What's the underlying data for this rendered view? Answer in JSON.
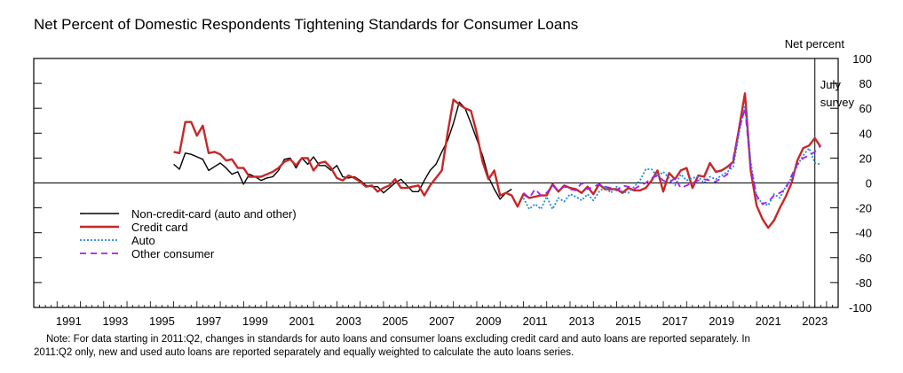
{
  "chart_data": {
    "type": "line",
    "title": "Net Percent of Domestic Respondents Tightening Standards for Consumer Loans",
    "ylabel": "Net percent",
    "ylim": [
      -100,
      100
    ],
    "yticks": [
      100,
      80,
      60,
      40,
      20,
      0,
      -20,
      -40,
      -60,
      -80,
      -100
    ],
    "xlim": [
      1990,
      2024.5
    ],
    "xticks": [
      "1991",
      "1993",
      "1995",
      "1997",
      "1999",
      "2001",
      "2003",
      "2005",
      "2007",
      "2009",
      "2011",
      "2013",
      "2015",
      "2017",
      "2019",
      "2021",
      "2023"
    ],
    "annotation": {
      "lines": [
        "July",
        "survey"
      ],
      "x": 2023.5
    },
    "legend": {
      "placement": "left-center"
    },
    "grid": false,
    "series": [
      {
        "name": "Non-credit-card (auto and other)",
        "color": "#000000",
        "style": "solid",
        "points": [
          [
            1996.0,
            15
          ],
          [
            1996.25,
            11
          ],
          [
            1996.5,
            24
          ],
          [
            1996.75,
            23
          ],
          [
            1997.0,
            21
          ],
          [
            1997.25,
            19
          ],
          [
            1997.5,
            10
          ],
          [
            1997.75,
            13
          ],
          [
            1998.0,
            16
          ],
          [
            1998.25,
            12
          ],
          [
            1998.5,
            7
          ],
          [
            1998.75,
            9
          ],
          [
            1999.0,
            -1
          ],
          [
            1999.25,
            7
          ],
          [
            1999.5,
            5
          ],
          [
            1999.75,
            2
          ],
          [
            2000.0,
            4
          ],
          [
            2000.25,
            5
          ],
          [
            2000.5,
            10
          ],
          [
            2000.75,
            19
          ],
          [
            2001.0,
            20
          ],
          [
            2001.25,
            12
          ],
          [
            2001.5,
            20
          ],
          [
            2001.75,
            15
          ],
          [
            2002.0,
            21
          ],
          [
            2002.25,
            14
          ],
          [
            2002.5,
            14
          ],
          [
            2002.75,
            10
          ],
          [
            2003.0,
            14
          ],
          [
            2003.25,
            5
          ],
          [
            2003.5,
            4
          ],
          [
            2003.75,
            5
          ],
          [
            2004.0,
            2
          ],
          [
            2004.25,
            -2
          ],
          [
            2004.5,
            -3
          ],
          [
            2004.75,
            -3
          ],
          [
            2005.0,
            -8
          ],
          [
            2005.25,
            -4
          ],
          [
            2005.5,
            0
          ],
          [
            2005.75,
            3
          ],
          [
            2006.0,
            -2
          ],
          [
            2006.25,
            -7
          ],
          [
            2006.5,
            -7
          ],
          [
            2006.75,
            2
          ],
          [
            2007.0,
            10
          ],
          [
            2007.25,
            15
          ],
          [
            2007.5,
            25
          ],
          [
            2007.75,
            34
          ],
          [
            2008.0,
            48
          ],
          [
            2008.25,
            65
          ],
          [
            2008.5,
            60
          ],
          [
            2008.75,
            48
          ],
          [
            2009.0,
            35
          ],
          [
            2009.25,
            22
          ],
          [
            2009.5,
            5
          ],
          [
            2009.75,
            -5
          ],
          [
            2010.0,
            -13
          ],
          [
            2010.25,
            -8
          ],
          [
            2010.5,
            -5
          ]
        ]
      },
      {
        "name": "Credit card",
        "color": "#c62828",
        "style": "solid",
        "points": [
          [
            1996.0,
            25
          ],
          [
            1996.25,
            24
          ],
          [
            1996.5,
            49
          ],
          [
            1996.75,
            49
          ],
          [
            1997.0,
            38
          ],
          [
            1997.25,
            46
          ],
          [
            1997.5,
            24
          ],
          [
            1997.75,
            25
          ],
          [
            1998.0,
            23
          ],
          [
            1998.25,
            18
          ],
          [
            1998.5,
            19
          ],
          [
            1998.75,
            12
          ],
          [
            1999.0,
            12
          ],
          [
            1999.25,
            5
          ],
          [
            1999.5,
            5
          ],
          [
            1999.75,
            5
          ],
          [
            2000.0,
            7
          ],
          [
            2000.25,
            9
          ],
          [
            2000.5,
            12
          ],
          [
            2000.75,
            17
          ],
          [
            2001.0,
            19
          ],
          [
            2001.25,
            14
          ],
          [
            2001.5,
            20
          ],
          [
            2001.75,
            20
          ],
          [
            2002.0,
            10
          ],
          [
            2002.25,
            16
          ],
          [
            2002.5,
            17
          ],
          [
            2002.75,
            12
          ],
          [
            2003.0,
            4
          ],
          [
            2003.25,
            2
          ],
          [
            2003.5,
            6
          ],
          [
            2003.75,
            4
          ],
          [
            2004.0,
            1
          ],
          [
            2004.25,
            -3
          ],
          [
            2004.5,
            -2
          ],
          [
            2004.75,
            -7
          ],
          [
            2005.0,
            -4
          ],
          [
            2005.25,
            -2
          ],
          [
            2005.5,
            3
          ],
          [
            2005.75,
            -4
          ],
          [
            2006.0,
            -4
          ],
          [
            2006.25,
            -3
          ],
          [
            2006.5,
            -2
          ],
          [
            2006.75,
            -10
          ],
          [
            2007.0,
            -2
          ],
          [
            2007.25,
            4
          ],
          [
            2007.5,
            10
          ],
          [
            2007.75,
            40
          ],
          [
            2008.0,
            67
          ],
          [
            2008.25,
            63
          ],
          [
            2008.5,
            60
          ],
          [
            2008.75,
            58
          ],
          [
            2009.0,
            40
          ],
          [
            2009.25,
            17
          ],
          [
            2009.5,
            3
          ],
          [
            2009.75,
            10
          ],
          [
            2010.0,
            -10
          ],
          [
            2010.25,
            -8
          ],
          [
            2010.5,
            -10
          ],
          [
            2010.75,
            -19
          ],
          [
            2011.0,
            -9
          ],
          [
            2011.25,
            -12
          ],
          [
            2011.5,
            -11
          ],
          [
            2011.75,
            -10
          ],
          [
            2012.0,
            -10
          ],
          [
            2012.25,
            -1
          ],
          [
            2012.5,
            -7
          ],
          [
            2012.75,
            -2
          ],
          [
            2013.0,
            -4
          ],
          [
            2013.25,
            -5
          ],
          [
            2013.5,
            -8
          ],
          [
            2013.75,
            -3
          ],
          [
            2014.0,
            -9
          ],
          [
            2014.25,
            -1
          ],
          [
            2014.5,
            -5
          ],
          [
            2014.75,
            -5
          ],
          [
            2015.0,
            -5
          ],
          [
            2015.25,
            -8
          ],
          [
            2015.5,
            -4
          ],
          [
            2015.75,
            -6
          ],
          [
            2016.0,
            -6
          ],
          [
            2016.25,
            -4
          ],
          [
            2016.5,
            2
          ],
          [
            2016.75,
            10
          ],
          [
            2017.0,
            -7
          ],
          [
            2017.25,
            8
          ],
          [
            2017.5,
            3
          ],
          [
            2017.75,
            10
          ],
          [
            2018.0,
            12
          ],
          [
            2018.25,
            -4
          ],
          [
            2018.5,
            6
          ],
          [
            2018.75,
            5
          ],
          [
            2019.0,
            16
          ],
          [
            2019.25,
            9
          ],
          [
            2019.5,
            10
          ],
          [
            2019.75,
            13
          ],
          [
            2020.0,
            17
          ],
          [
            2020.25,
            44
          ],
          [
            2020.5,
            72
          ],
          [
            2020.75,
            10
          ],
          [
            2021.0,
            -18
          ],
          [
            2021.25,
            -29
          ],
          [
            2021.5,
            -36
          ],
          [
            2021.75,
            -30
          ],
          [
            2022.0,
            -20
          ],
          [
            2022.25,
            -11
          ],
          [
            2022.5,
            0
          ],
          [
            2022.75,
            18
          ],
          [
            2023.0,
            28
          ],
          [
            2023.25,
            30
          ],
          [
            2023.5,
            36
          ],
          [
            2023.75,
            29
          ]
        ]
      },
      {
        "name": "Auto",
        "color": "#1e88e5",
        "style": "dotted",
        "points": [
          [
            2011.0,
            -12
          ],
          [
            2011.25,
            -21
          ],
          [
            2011.5,
            -17
          ],
          [
            2011.75,
            -21
          ],
          [
            2012.0,
            -11
          ],
          [
            2012.25,
            -21
          ],
          [
            2012.5,
            -12
          ],
          [
            2012.75,
            -15
          ],
          [
            2013.0,
            -9
          ],
          [
            2013.25,
            -11
          ],
          [
            2013.5,
            -14
          ],
          [
            2013.75,
            -9
          ],
          [
            2014.0,
            -14
          ],
          [
            2014.25,
            -7
          ],
          [
            2014.5,
            -3
          ],
          [
            2014.75,
            -8
          ],
          [
            2015.0,
            -3
          ],
          [
            2015.25,
            -7
          ],
          [
            2015.5,
            -8
          ],
          [
            2015.75,
            -3
          ],
          [
            2016.0,
            2
          ],
          [
            2016.25,
            11
          ],
          [
            2016.5,
            11
          ],
          [
            2016.75,
            5
          ],
          [
            2017.0,
            9
          ],
          [
            2017.25,
            4
          ],
          [
            2017.5,
            -2
          ],
          [
            2017.75,
            7
          ],
          [
            2018.0,
            2
          ],
          [
            2018.25,
            4
          ],
          [
            2018.5,
            5
          ],
          [
            2018.75,
            0
          ],
          [
            2019.0,
            5
          ],
          [
            2019.25,
            3
          ],
          [
            2019.5,
            6
          ],
          [
            2019.75,
            9
          ],
          [
            2020.0,
            13
          ],
          [
            2020.25,
            40
          ],
          [
            2020.5,
            62
          ],
          [
            2020.75,
            17
          ],
          [
            2021.0,
            -12
          ],
          [
            2021.25,
            -16
          ],
          [
            2021.5,
            -18
          ],
          [
            2021.75,
            -9
          ],
          [
            2022.0,
            -12
          ],
          [
            2022.25,
            -3
          ],
          [
            2022.5,
            4
          ],
          [
            2022.75,
            14
          ],
          [
            2023.0,
            22
          ],
          [
            2023.25,
            28
          ],
          [
            2023.5,
            16
          ],
          [
            2023.75,
            15
          ]
        ]
      },
      {
        "name": "Other consumer",
        "color": "#a020f0",
        "style": "dashed",
        "points": [
          [
            2011.0,
            -8
          ],
          [
            2011.25,
            -12
          ],
          [
            2011.5,
            -5
          ],
          [
            2011.75,
            -10
          ],
          [
            2012.0,
            -8
          ],
          [
            2012.25,
            -2
          ],
          [
            2012.5,
            -6
          ],
          [
            2012.75,
            -3
          ],
          [
            2013.0,
            -5
          ],
          [
            2013.25,
            -6
          ],
          [
            2013.5,
            0
          ],
          [
            2013.75,
            -5
          ],
          [
            2014.0,
            -3
          ],
          [
            2014.25,
            -1
          ],
          [
            2014.5,
            -3
          ],
          [
            2014.75,
            -4
          ],
          [
            2015.0,
            -6
          ],
          [
            2015.25,
            -2
          ],
          [
            2015.5,
            -3
          ],
          [
            2015.75,
            -5
          ],
          [
            2016.0,
            -2
          ],
          [
            2016.25,
            0
          ],
          [
            2016.5,
            4
          ],
          [
            2016.75,
            6
          ],
          [
            2017.0,
            2
          ],
          [
            2017.25,
            0
          ],
          [
            2017.5,
            4
          ],
          [
            2017.75,
            -4
          ],
          [
            2018.0,
            -2
          ],
          [
            2018.25,
            0
          ],
          [
            2018.5,
            2
          ],
          [
            2018.75,
            3
          ],
          [
            2019.0,
            2
          ],
          [
            2019.25,
            1
          ],
          [
            2019.5,
            4
          ],
          [
            2019.75,
            7
          ],
          [
            2020.0,
            20
          ],
          [
            2020.25,
            43
          ],
          [
            2020.5,
            60
          ],
          [
            2020.75,
            12
          ],
          [
            2021.0,
            -10
          ],
          [
            2021.25,
            -17
          ],
          [
            2021.5,
            -15
          ],
          [
            2021.75,
            -10
          ],
          [
            2022.0,
            -8
          ],
          [
            2022.25,
            -5
          ],
          [
            2022.5,
            6
          ],
          [
            2022.75,
            15
          ],
          [
            2023.0,
            20
          ],
          [
            2023.25,
            22
          ],
          [
            2023.5,
            25
          ],
          [
            2023.75,
            30
          ]
        ]
      }
    ]
  },
  "note": {
    "line1": "Note: For data starting in 2011:Q2, changes in standards for auto loans and consumer loans excluding credit card and auto loans are reported separately. In",
    "line2": "2011:Q2 only, new and used auto loans are reported separately and equally weighted to calculate the auto loans series."
  }
}
